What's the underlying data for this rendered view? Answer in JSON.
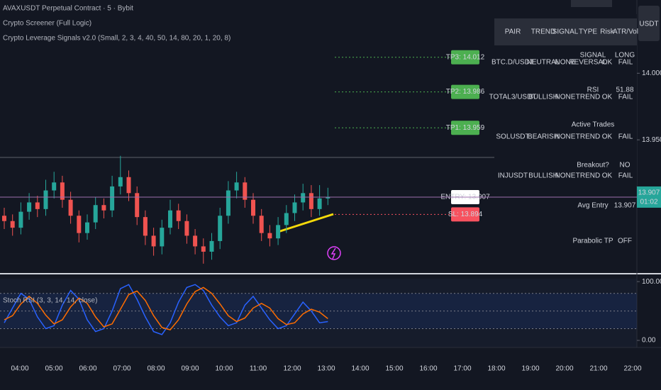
{
  "header": {
    "symbol": "AVAXUSDT Perpetual Contract · 5 · Bybit",
    "indicators": [
      "Crypto Screener (Full Logic)",
      "Crypto Leverage Signals v2.0 (Small, 2, 3, 4, 40, 50, 14, 80, 20, 1, 20, 8)"
    ],
    "currency": "USDT"
  },
  "screener": {
    "headers": [
      "PAIR",
      "TREND",
      "SIGNAL",
      "TYPE",
      "Risk",
      "ATR/Vol"
    ],
    "rows": [
      [
        "BTC.D/USDT",
        "NEUTRAL",
        "NONE",
        "REVERSAL",
        "OK",
        "FAIL"
      ],
      [
        "TOTAL3/USDT",
        "BULLISH",
        "NONE",
        "TREND",
        "OK",
        "FAIL"
      ],
      [
        "SOLUSDT",
        "BEARISH",
        "NONE",
        "TREND",
        "OK",
        "FAIL"
      ],
      [
        "INJUSDT",
        "BULLISH",
        "NONE",
        "TREND",
        "OK",
        "FAIL"
      ]
    ],
    "row_colors": [
      [
        "#ffffff",
        "#f7525f",
        "#787b86",
        "#f5d90a",
        "#4caf50",
        "#f7525f"
      ],
      [
        "#ffffff",
        "#4caf50",
        "#787b86",
        "#f5d90a",
        "#4caf50",
        "#f7525f"
      ],
      [
        "#ffffff",
        "#f7525f",
        "#787b86",
        "#f5d90a",
        "#4caf50",
        "#f7525f"
      ],
      [
        "#ffffff",
        "#4caf50",
        "#787b86",
        "#f5d90a",
        "#4caf50",
        "#f7525f"
      ]
    ]
  },
  "status": {
    "rows": [
      [
        "SIGNAL",
        "LONG"
      ],
      [
        "RSI",
        "51.88"
      ],
      [
        "Active Trades"
      ],
      [
        "Breakout?",
        "NO"
      ],
      [
        "Avg Entry",
        "13.907"
      ],
      [
        "Parabolic TP",
        "OFF"
      ]
    ],
    "colors": [
      "#4caf50",
      "#f5d90a",
      "#ffffff",
      "#f7525f",
      "#f5d90a",
      "#f7525f"
    ]
  },
  "chart_data": [
    {
      "type": "candlestick",
      "up_color": "#26a69a",
      "down_color": "#ef5350",
      "open": [
        13.893,
        13.889,
        13.884,
        13.896,
        13.903,
        13.898,
        13.912,
        13.918,
        13.905,
        13.893,
        13.88,
        13.888,
        13.901,
        13.897,
        13.915,
        13.922,
        13.91,
        13.892,
        13.878,
        13.87,
        13.884,
        13.897,
        13.889,
        13.878,
        13.87,
        13.866,
        13.874,
        13.893,
        13.912,
        13.918,
        13.905,
        13.893,
        13.88,
        13.876,
        13.886,
        13.895,
        13.903,
        13.91,
        13.898,
        13.906
      ],
      "high": [
        13.899,
        13.894,
        13.903,
        13.91,
        13.908,
        13.92,
        13.926,
        13.923,
        13.911,
        13.897,
        13.894,
        13.907,
        13.906,
        13.923,
        13.938,
        13.927,
        13.915,
        13.897,
        13.884,
        13.89,
        13.905,
        13.902,
        13.894,
        13.883,
        13.876,
        13.88,
        13.899,
        13.919,
        13.926,
        13.922,
        13.91,
        13.898,
        13.886,
        13.892,
        13.901,
        13.909,
        13.917,
        13.916,
        13.916,
        13.914
      ],
      "low": [
        13.883,
        13.878,
        13.879,
        13.89,
        13.892,
        13.893,
        13.906,
        13.899,
        13.887,
        13.873,
        13.875,
        13.883,
        13.891,
        13.892,
        13.909,
        13.904,
        13.886,
        13.871,
        13.863,
        13.864,
        13.879,
        13.883,
        13.872,
        13.864,
        13.857,
        13.86,
        13.868,
        13.887,
        13.906,
        13.899,
        13.887,
        13.874,
        13.87,
        13.871,
        13.88,
        13.889,
        13.897,
        13.892,
        13.893,
        13.901
      ],
      "close": [
        13.889,
        13.884,
        13.896,
        13.903,
        13.898,
        13.912,
        13.918,
        13.905,
        13.893,
        13.88,
        13.888,
        13.901,
        13.897,
        13.915,
        13.922,
        13.91,
        13.892,
        13.878,
        13.87,
        13.884,
        13.897,
        13.889,
        13.878,
        13.87,
        13.866,
        13.874,
        13.893,
        13.912,
        13.918,
        13.905,
        13.893,
        13.88,
        13.876,
        13.886,
        13.895,
        13.903,
        13.91,
        13.898,
        13.906,
        13.907
      ],
      "ylim": [
        13.85,
        14.055
      ],
      "yticks": [
        {
          "value": 13.95,
          "label": "13.950"
        },
        {
          "value": 14.0,
          "label": "14.000"
        }
      ],
      "last_price": {
        "value": 13.907,
        "label": "13.907",
        "countdown": "01:02",
        "color": "#26a69a"
      },
      "levels": [
        {
          "label": "TP3: 14.012",
          "value": 14.012,
          "color": "#4caf50"
        },
        {
          "label": "TP2: 13.986",
          "value": 13.986,
          "color": "#4caf50"
        },
        {
          "label": "TP1: 13.959",
          "value": 13.959,
          "color": "#4caf50"
        },
        {
          "label": "ENTRY: 13.907",
          "value": 13.907,
          "color": "#ffffff"
        },
        {
          "label": "SL: 13.894",
          "value": 13.894,
          "color": "#f7525f"
        }
      ],
      "time_labels": [
        "04:00",
        "05:00",
        "06:00",
        "07:00",
        "08:00",
        "09:00",
        "10:00",
        "11:00",
        "12:00",
        "13:00",
        "14:00",
        "15:00",
        "16:00",
        "17:00",
        "18:00",
        "19:00",
        "20:00",
        "21:00",
        "22:00"
      ]
    },
    {
      "type": "line",
      "title": "Stoch RSI (3, 3, 14, 14, close)",
      "series": [
        {
          "color": "#2962ff",
          "values": [
            30,
            55,
            80,
            70,
            40,
            20,
            25,
            60,
            85,
            70,
            35,
            15,
            20,
            50,
            88,
            95,
            70,
            40,
            15,
            10,
            30,
            65,
            90,
            95,
            85,
            60,
            40,
            25,
            30,
            60,
            75,
            55,
            35,
            20,
            25,
            45,
            65,
            50,
            30,
            32
          ]
        },
        {
          "color": "#ff6d00",
          "values": [
            35,
            42,
            62,
            75,
            63,
            43,
            28,
            35,
            57,
            72,
            63,
            40,
            23,
            28,
            53,
            78,
            84,
            68,
            42,
            22,
            18,
            35,
            62,
            83,
            90,
            80,
            62,
            42,
            32,
            38,
            55,
            63,
            55,
            37,
            27,
            30,
            45,
            53,
            48,
            37
          ]
        }
      ],
      "hlines": [
        80,
        50,
        20
      ],
      "ylim": [
        -12,
        111
      ],
      "yticks": [
        {
          "value": 0,
          "label": "0.00"
        },
        {
          "value": 100,
          "label": "100.00"
        }
      ]
    }
  ]
}
